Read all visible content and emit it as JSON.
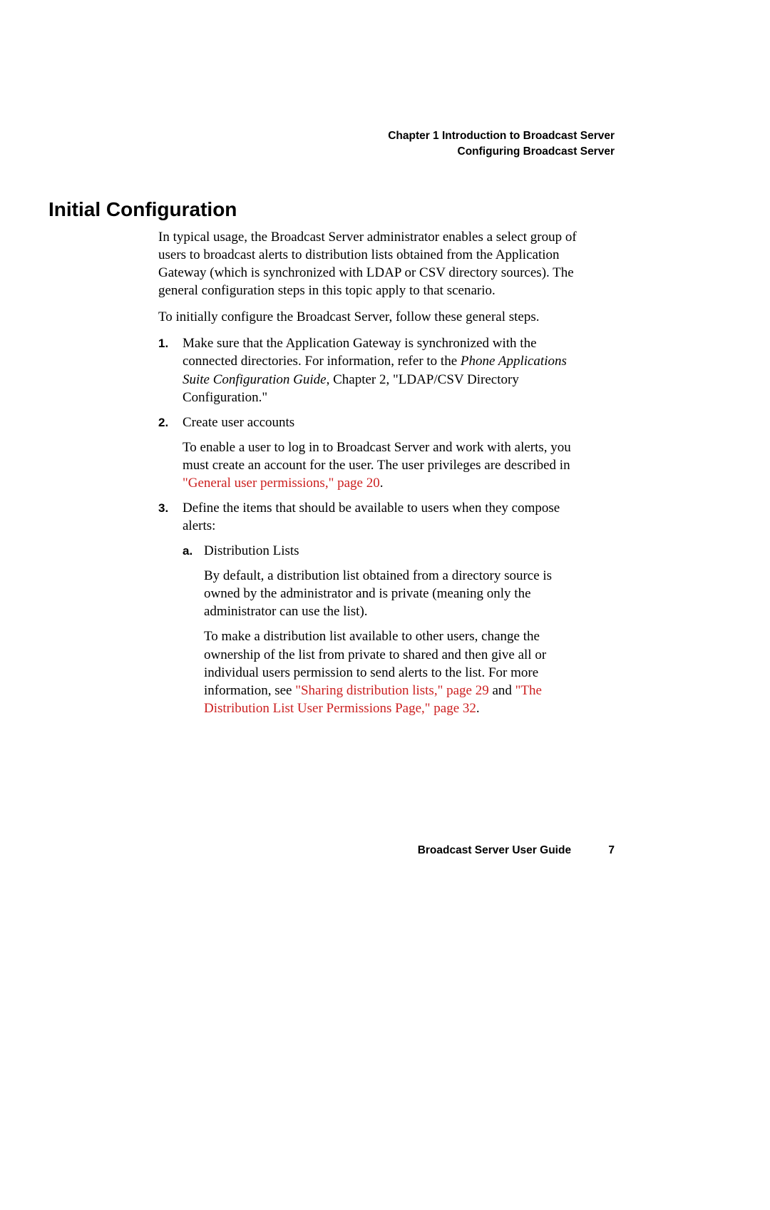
{
  "header": {
    "chapter_line": "Chapter 1    Introduction to Broadcast Server",
    "subtitle": "Configuring Broadcast Server"
  },
  "heading": "Initial Configuration",
  "intro1": "In typical usage, the Broadcast Server administrator enables a select group of users to broadcast alerts to distribution lists obtained from the Application Gateway (which is synchronized with LDAP or CSV directory sources). The general configuration steps in this topic apply to that scenario.",
  "intro2": "To initially configure the Broadcast Server, follow these general steps.",
  "items": {
    "n1": {
      "marker": "1.",
      "t1": "Make sure that the Application Gateway is synchronized with the connected directories. For information, refer to the ",
      "italic": "Phone Applications Suite Configuration Guide",
      "t2": ", Chapter 2, \"LDAP/CSV Directory Configuration.\""
    },
    "n2": {
      "marker": "2.",
      "title": "Create user accounts",
      "t1": "To enable a user to log in to Broadcast Server and work with alerts, you must create an account for the user. The user privileges are described in ",
      "link": "\"General user permissions,\" page 20",
      "t2": "."
    },
    "n3": {
      "marker": "3.",
      "title": "Define the items that should be available to users when they compose alerts:",
      "a": {
        "marker": "a.",
        "title": "Distribution Lists",
        "p1": "By default, a distribution list obtained from a directory source is owned by the administrator and is private (meaning only the administrator can use the list).",
        "p2a": "To make a distribution list available to other users, change the ownership of the list from private to shared and then give all or individual users permission to send alerts to the list. For more information, see ",
        "link1": "\"Sharing distribution lists,\" page 29",
        "p2b": " and ",
        "link2": "\"The Distribution List User Permissions Page,\" page 32",
        "p2c": "."
      }
    }
  },
  "footer": {
    "title": "Broadcast Server User Guide",
    "page": "7"
  },
  "colors": {
    "link": "#cc2020",
    "text": "#000000",
    "background": "#ffffff"
  },
  "typography": {
    "body_font": "Palatino/Book Antiqua serif",
    "body_size_pt": 14,
    "ui_font": "Arial/Helvetica sans-serif",
    "heading_size_pt": 21,
    "header_footer_size_pt": 12
  }
}
